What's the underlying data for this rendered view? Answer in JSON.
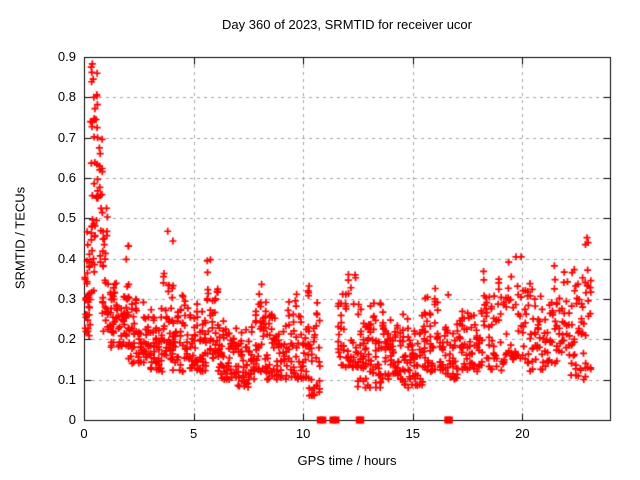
{
  "chart_data": {
    "type": "scatter",
    "title": "Day 360 of 2023, SRMTID for receiver ucor",
    "xlabel": "GPS time / hours",
    "ylabel": "SRMTID / TECUs",
    "xlim": [
      0,
      24
    ],
    "ylim": [
      0,
      0.9
    ],
    "xticks": [
      0,
      5,
      10,
      15,
      20
    ],
    "xtick_labels": [
      "0",
      "5",
      "10",
      "15",
      "20"
    ],
    "yticks": [
      0,
      0.1,
      0.2,
      0.3,
      0.4,
      0.5,
      0.6,
      0.7,
      0.8,
      0.9
    ],
    "ytick_labels": [
      "0",
      "0.1",
      "0.2",
      "0.3",
      "0.4",
      "0.5",
      "0.6",
      "0.7",
      "0.8",
      "0.9"
    ],
    "grid": {
      "show": true,
      "color": "#a6a6a6",
      "dash": [
        3,
        4
      ],
      "mirror_ticks": true
    },
    "legend": "none",
    "background_color": "#ffffff",
    "axis_color": "#000000",
    "text_color": "#000000",
    "marker": {
      "symbol": "plus",
      "color": "#ff0000",
      "size": 7,
      "line_width": 1.7
    },
    "seed": 360,
    "data_gap_hours": [
      [
        10.8,
        11.55
      ],
      [
        23.15,
        24
      ]
    ],
    "series": [
      {
        "name": "SRMTID",
        "style": "points",
        "notable_points": [
          [
            0.33,
            0.875
          ],
          [
            0.38,
            0.883
          ],
          [
            0.36,
            0.862
          ],
          [
            0.42,
            0.845
          ],
          [
            0.45,
            0.8
          ],
          [
            0.5,
            0.772
          ],
          [
            0.55,
            0.745
          ],
          [
            0.62,
            0.7
          ],
          [
            0.3,
            0.74
          ],
          [
            3.82,
            0.468
          ],
          [
            22.95,
            0.452
          ],
          [
            23.0,
            0.44
          ],
          [
            22.88,
            0.435
          ]
        ],
        "zero_points_x": [
          10.78,
          10.9,
          11.36,
          11.5,
          12.56,
          12.63,
          16.6,
          16.67
        ],
        "density_bins": [
          [
            0.02,
            0.3,
            0.2,
            0.46,
            22
          ],
          [
            0.1,
            0.5,
            0.3,
            0.55,
            18
          ],
          [
            0.3,
            0.65,
            0.45,
            0.88,
            26
          ],
          [
            0.55,
            0.9,
            0.55,
            0.75,
            14
          ],
          [
            0.7,
            1.1,
            0.38,
            0.6,
            18
          ],
          [
            0.8,
            1.4,
            0.22,
            0.45,
            30
          ],
          [
            1.2,
            2.0,
            0.18,
            0.38,
            45
          ],
          [
            1.8,
            2.1,
            0.25,
            0.46,
            12
          ],
          [
            2.0,
            3.0,
            0.14,
            0.34,
            65
          ],
          [
            3.0,
            3.6,
            0.12,
            0.3,
            45
          ],
          [
            3.6,
            4.1,
            0.15,
            0.47,
            35
          ],
          [
            4.0,
            5.0,
            0.12,
            0.32,
            60
          ],
          [
            5.0,
            5.6,
            0.12,
            0.3,
            45
          ],
          [
            5.6,
            6.15,
            0.15,
            0.44,
            38
          ],
          [
            6.1,
            7.0,
            0.1,
            0.28,
            60
          ],
          [
            7.0,
            7.8,
            0.08,
            0.26,
            55
          ],
          [
            7.8,
            8.35,
            0.12,
            0.42,
            38
          ],
          [
            8.3,
            9.5,
            0.1,
            0.3,
            70
          ],
          [
            9.5,
            10.3,
            0.1,
            0.38,
            50
          ],
          [
            10.2,
            10.8,
            0.06,
            0.3,
            35
          ],
          [
            11.55,
            12.45,
            0.13,
            0.38,
            50
          ],
          [
            12.45,
            13.6,
            0.08,
            0.33,
            80
          ],
          [
            13.6,
            14.6,
            0.1,
            0.3,
            65
          ],
          [
            14.6,
            15.6,
            0.08,
            0.28,
            60
          ],
          [
            15.5,
            16.2,
            0.12,
            0.38,
            40
          ],
          [
            16.2,
            17.2,
            0.1,
            0.32,
            55
          ],
          [
            17.2,
            18.2,
            0.12,
            0.35,
            55
          ],
          [
            18.2,
            19.2,
            0.12,
            0.4,
            50
          ],
          [
            19.2,
            20.2,
            0.15,
            0.43,
            45
          ],
          [
            20.2,
            21.2,
            0.12,
            0.35,
            50
          ],
          [
            21.2,
            22.2,
            0.14,
            0.4,
            50
          ],
          [
            22.2,
            23.15,
            0.1,
            0.46,
            55
          ]
        ]
      }
    ]
  }
}
